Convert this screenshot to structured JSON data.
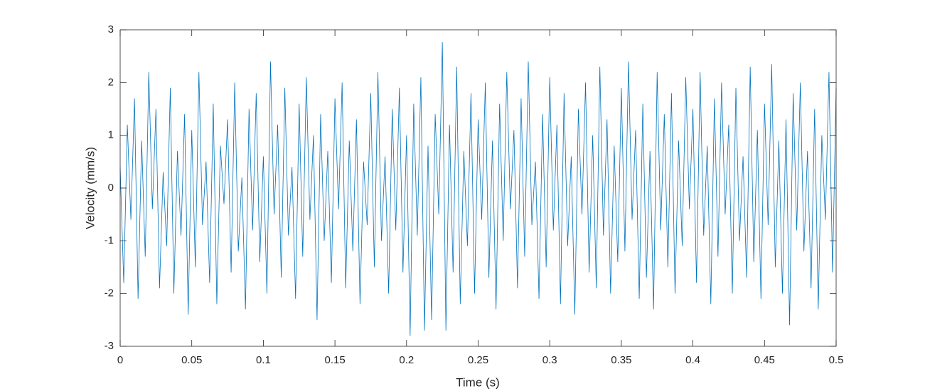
{
  "chart_data": {
    "type": "line",
    "xlabel": "Time (s)",
    "ylabel": "Velocity (mm/s)",
    "color": "#0072bd",
    "xlim": [
      0,
      0.5
    ],
    "xticks": [
      0,
      0.05,
      0.1,
      0.15,
      0.2,
      0.25,
      0.3,
      0.35,
      0.4,
      0.45,
      0.5
    ],
    "ylim": [
      -3,
      3
    ],
    "yticks": [
      -3,
      -2,
      -1,
      0,
      1,
      2,
      3
    ],
    "x": [
      0,
      0.0025,
      0.005,
      0.0075,
      0.01,
      0.0125,
      0.015,
      0.0175,
      0.02,
      0.0225,
      0.025,
      0.0275,
      0.03,
      0.0325,
      0.035,
      0.0375,
      0.04,
      0.0425,
      0.045,
      0.0475,
      0.05,
      0.0525,
      0.055,
      0.0575,
      0.06,
      0.0625,
      0.065,
      0.0675,
      0.07,
      0.0725,
      0.075,
      0.0775,
      0.08,
      0.0825,
      0.085,
      0.0875,
      0.09,
      0.0925,
      0.095,
      0.0975,
      0.1,
      0.1025,
      0.105,
      0.1075,
      0.11,
      0.1125,
      0.115,
      0.1175,
      0.12,
      0.1225,
      0.125,
      0.1275,
      0.13,
      0.1325,
      0.135,
      0.1375,
      0.14,
      0.1425,
      0.145,
      0.1475,
      0.15,
      0.1525,
      0.155,
      0.1575,
      0.16,
      0.1625,
      0.165,
      0.1675,
      0.17,
      0.1725,
      0.175,
      0.1775,
      0.18,
      0.1825,
      0.185,
      0.1875,
      0.19,
      0.1925,
      0.195,
      0.1975,
      0.2,
      0.2025,
      0.205,
      0.2075,
      0.21,
      0.2125,
      0.215,
      0.2175,
      0.22,
      0.2225,
      0.225,
      0.2275,
      0.23,
      0.2325,
      0.235,
      0.2375,
      0.24,
      0.2425,
      0.245,
      0.2475,
      0.25,
      0.2525,
      0.255,
      0.2575,
      0.26,
      0.2625,
      0.265,
      0.2675,
      0.27,
      0.2725,
      0.275,
      0.2775,
      0.28,
      0.2825,
      0.285,
      0.2875,
      0.29,
      0.2925,
      0.295,
      0.2975,
      0.3,
      0.3025,
      0.305,
      0.3075,
      0.31,
      0.3125,
      0.315,
      0.3175,
      0.32,
      0.3225,
      0.325,
      0.3275,
      0.33,
      0.3325,
      0.335,
      0.3375,
      0.34,
      0.3425,
      0.345,
      0.3475,
      0.35,
      0.3525,
      0.355,
      0.3575,
      0.36,
      0.3625,
      0.365,
      0.3675,
      0.37,
      0.3725,
      0.375,
      0.3775,
      0.38,
      0.3825,
      0.385,
      0.3875,
      0.39,
      0.3925,
      0.395,
      0.3975,
      0.4,
      0.4025,
      0.405,
      0.4075,
      0.41,
      0.4125,
      0.415,
      0.4175,
      0.42,
      0.4225,
      0.425,
      0.4275,
      0.43,
      0.4325,
      0.435,
      0.4375,
      0.44,
      0.4425,
      0.445,
      0.4475,
      0.45,
      0.4525,
      0.455,
      0.4575,
      0.46,
      0.4625,
      0.465,
      0.4675,
      0.47,
      0.4725,
      0.475,
      0.4775,
      0.48,
      0.4825,
      0.485,
      0.4875,
      0.49,
      0.4925,
      0.495,
      0.4975,
      0.5
    ],
    "values": [
      0.4,
      -1.8,
      1.2,
      -0.6,
      1.7,
      -2.1,
      0.9,
      -1.3,
      2.2,
      -0.4,
      1.5,
      -1.9,
      0.3,
      -1.1,
      1.9,
      -2.0,
      0.7,
      -0.9,
      1.4,
      -2.4,
      1.1,
      -1.5,
      2.2,
      -0.7,
      0.5,
      -1.8,
      1.6,
      -2.2,
      0.8,
      -0.3,
      1.3,
      -1.6,
      2.0,
      -1.2,
      0.2,
      -2.3,
      1.5,
      -0.8,
      1.8,
      -1.4,
      0.6,
      -2.0,
      2.4,
      -0.5,
      1.2,
      -1.7,
      1.9,
      -0.9,
      0.4,
      -2.1,
      1.6,
      -1.3,
      2.1,
      -0.6,
      1.0,
      -2.5,
      1.4,
      -1.0,
      0.7,
      -1.8,
      1.7,
      -0.4,
      2.0,
      -1.9,
      0.9,
      -1.2,
      1.3,
      -2.2,
      0.5,
      -0.7,
      1.8,
      -1.5,
      2.2,
      -1.0,
      0.6,
      -2.0,
      1.5,
      -0.8,
      1.9,
      -1.6,
      1.0,
      -2.8,
      1.6,
      -0.9,
      2.1,
      -2.7,
      0.8,
      -2.5,
      1.4,
      -0.5,
      2.77,
      -2.7,
      1.2,
      -1.6,
      2.3,
      -2.2,
      0.7,
      -1.1,
      1.8,
      -2.0,
      1.3,
      -0.6,
      2.0,
      -1.7,
      0.9,
      -2.3,
      1.6,
      -1.0,
      2.2,
      -0.4,
      1.1,
      -1.9,
      1.7,
      -1.3,
      2.4,
      -0.7,
      0.5,
      -2.1,
      1.4,
      -1.5,
      2.1,
      -0.8,
      1.2,
      -2.2,
      1.8,
      -1.1,
      0.6,
      -2.4,
      1.5,
      -0.5,
      2.0,
      -1.6,
      1.0,
      -1.9,
      2.3,
      -0.9,
      1.3,
      -2.0,
      0.8,
      -1.4,
      1.9,
      -1.2,
      2.4,
      -0.6,
      1.1,
      -2.1,
      1.6,
      -1.7,
      0.7,
      -2.3,
      2.2,
      -0.8,
      1.4,
      -1.5,
      1.8,
      -2.0,
      0.9,
      -1.1,
      2.1,
      -0.4,
      1.5,
      -1.8,
      2.2,
      -0.9,
      0.8,
      -2.2,
      1.7,
      -1.3,
      2.0,
      -0.5,
      1.2,
      -2.0,
      1.9,
      -1.0,
      0.6,
      -1.7,
      2.3,
      -1.4,
      1.1,
      -2.1,
      1.6,
      -0.7,
      2.35,
      -1.5,
      0.9,
      -2.0,
      1.3,
      -2.6,
      1.8,
      -0.8,
      2.0,
      -1.2,
      0.7,
      -1.9,
      1.5,
      -2.3,
      1.0,
      -0.6,
      2.2,
      -1.6,
      1.9
    ]
  }
}
